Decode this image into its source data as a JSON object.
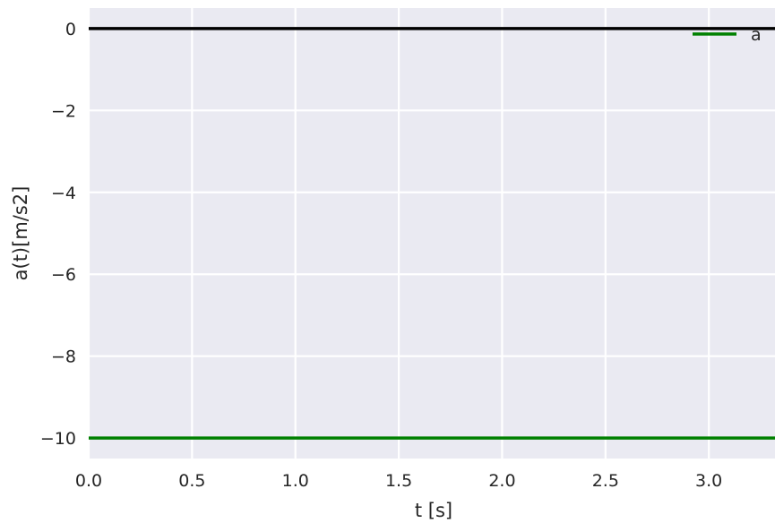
{
  "chart_data": {
    "type": "line",
    "xlabel": "t [s]",
    "ylabel": "a(t)[m/s2]",
    "xlim": [
      0.0,
      3.32
    ],
    "ylim": [
      -10.5,
      0.5
    ],
    "x_ticks": [
      "0.0",
      "0.5",
      "1.0",
      "1.5",
      "2.0",
      "2.5",
      "3.0"
    ],
    "x_tick_values": [
      0.0,
      0.5,
      1.0,
      1.5,
      2.0,
      2.5,
      3.0
    ],
    "y_ticks": [
      "0",
      "−2",
      "−4",
      "−6",
      "−8",
      "−10"
    ],
    "y_tick_values": [
      0,
      -2,
      -4,
      -6,
      -8,
      -10
    ],
    "grid": true,
    "legend_position": "top-right",
    "reference_line": {
      "y": 0,
      "color": "#000000"
    },
    "series": [
      {
        "name": "a",
        "color": "#008000",
        "x": [
          0.0,
          3.32
        ],
        "y": [
          -10,
          -10
        ]
      }
    ],
    "background": "#eaeaf2"
  }
}
